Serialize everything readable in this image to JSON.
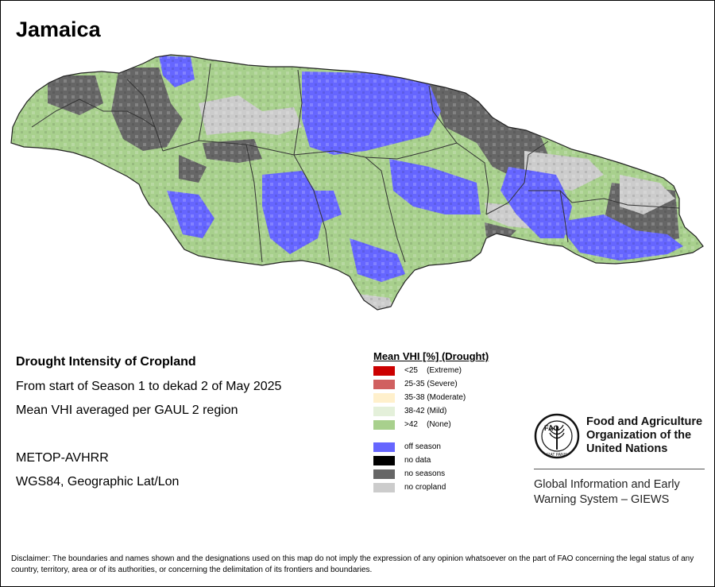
{
  "map": {
    "title": "Jamaica",
    "colors": {
      "off_season": "#6666ff",
      "none": "#a8d08d",
      "no_seasons": "#666666",
      "no_cropland": "#cccccc",
      "boundary": "#333333"
    }
  },
  "info": {
    "heading": "Drought Intensity of Cropland",
    "period": "From start of Season 1 to dekad 2 of May 2025",
    "method": "Mean VHI averaged per GAUL 2 region",
    "sensor": "METOP-AVHRR",
    "projection": "WGS84, Geographic Lat/Lon"
  },
  "legend": {
    "title": "Mean VHI [%] (Drought)",
    "classes": [
      {
        "label": "<25    (Extreme)",
        "color": "#cc0000"
      },
      {
        "label": "25-35 (Severe)",
        "color": "#d06060"
      },
      {
        "label": "35-38 (Moderate)",
        "color": "#fff0cc"
      },
      {
        "label": "38-42 (Mild)",
        "color": "#e4f0da"
      },
      {
        "label": ">42    (None)",
        "color": "#a8d08d"
      }
    ],
    "other": [
      {
        "label": "off season",
        "color": "#6666ff"
      },
      {
        "label": "no data",
        "color": "#000000"
      },
      {
        "label": "no seasons",
        "color": "#666666"
      },
      {
        "label": "no cropland",
        "color": "#cccccc"
      }
    ]
  },
  "organization": {
    "name": "Food and Agriculture\nOrganization of the\nUnited Nations",
    "logo_text": "FAO",
    "logo_motto": "FIAT PANIS",
    "system": "Global Information and Early\nWarning System – GIEWS"
  },
  "disclaimer": "Disclaimer: The boundaries and names shown and the designations used on this map do not imply the expression of any opinion whatsoever on the part of FAO concerning the legal status of any country, territory, area or of its authorities, or concerning the delimitation of its frontiers and boundaries."
}
